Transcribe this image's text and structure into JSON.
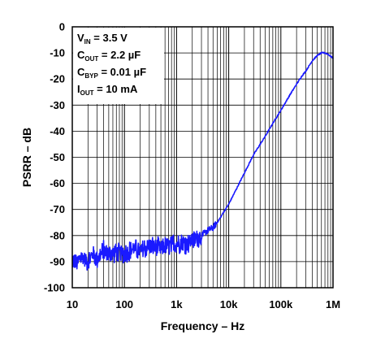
{
  "chart_data": {
    "type": "line",
    "xscale": "log",
    "xlim": [
      10,
      1000000
    ],
    "ylim": [
      -100,
      0
    ],
    "xlabel": "Frequency – Hz",
    "ylabel": "PSRR – dB",
    "x_ticks": [
      {
        "value": 10,
        "label": "10"
      },
      {
        "value": 100,
        "label": "100"
      },
      {
        "value": 1000,
        "label": "1k"
      },
      {
        "value": 10000,
        "label": "10k"
      },
      {
        "value": 100000,
        "label": "100k"
      },
      {
        "value": 1000000,
        "label": "1M"
      }
    ],
    "y_ticks": [
      0,
      -10,
      -20,
      -30,
      -40,
      -50,
      -60,
      -70,
      -80,
      -90,
      -100
    ],
    "grid": true,
    "line_color": "#1a1aff",
    "annotation": {
      "position": "top-left",
      "lines": [
        {
          "main": "V",
          "sub": "IN",
          "rest": " = 3.5 V"
        },
        {
          "main": "C",
          "sub": "OUT",
          "rest": " = 2.2 µF"
        },
        {
          "main": "C",
          "sub": "BYP",
          "rest": " = 0.01 µF"
        },
        {
          "main": "I",
          "sub": "OUT",
          "rest": " = 10 mA"
        }
      ]
    },
    "series": [
      {
        "x": [
          10,
          12,
          15,
          20,
          25,
          30,
          40,
          50,
          70,
          100,
          150,
          200,
          300,
          500,
          700,
          1000,
          1500,
          2000,
          3000,
          4000,
          5000,
          6000,
          7000,
          8000,
          10000,
          15000,
          20000,
          30000,
          50000,
          70000,
          100000,
          150000,
          200000,
          250000,
          300000,
          400000,
          500000,
          600000,
          700000,
          800000,
          1000000
        ],
        "y": [
          -89,
          -91,
          -88,
          -90,
          -87,
          -89,
          -86,
          -87,
          -86,
          -87,
          -85,
          -86,
          -84,
          -85,
          -84,
          -83,
          -83,
          -82,
          -80,
          -78,
          -77,
          -75,
          -73,
          -71,
          -68,
          -61,
          -56,
          -49,
          -42,
          -37,
          -32,
          -26,
          -22,
          -19,
          -17,
          -13,
          -11,
          -10,
          -10,
          -10.5,
          -12
        ]
      }
    ]
  }
}
